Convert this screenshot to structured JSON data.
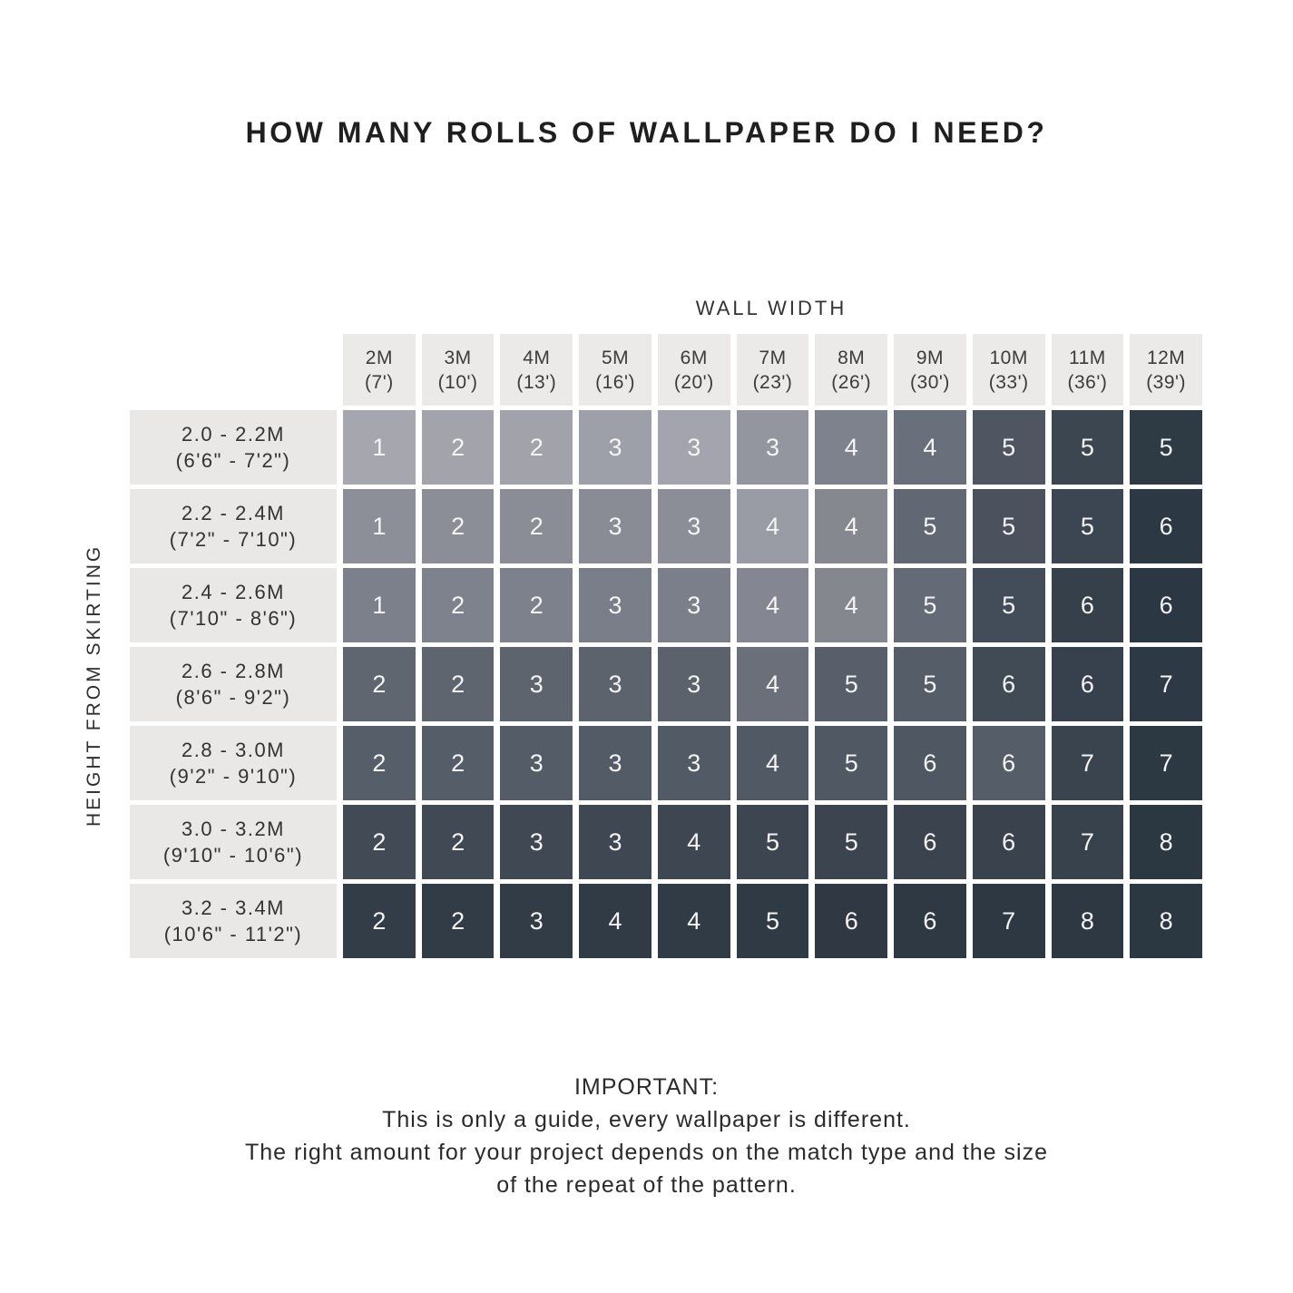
{
  "title": "HOW MANY ROLLS OF WALLPAPER DO I NEED?",
  "table": {
    "column_axis_label": "WALL WIDTH",
    "row_axis_label": "HEIGHT FROM SKIRTING",
    "columns": [
      {
        "meters": "2M",
        "feet": "(7')"
      },
      {
        "meters": "3M",
        "feet": "(10')"
      },
      {
        "meters": "4M",
        "feet": "(13')"
      },
      {
        "meters": "5M",
        "feet": "(16')"
      },
      {
        "meters": "6M",
        "feet": "(20')"
      },
      {
        "meters": "7M",
        "feet": "(23')"
      },
      {
        "meters": "8M",
        "feet": "(26')"
      },
      {
        "meters": "9M",
        "feet": "(30')"
      },
      {
        "meters": "10M",
        "feet": "(33')"
      },
      {
        "meters": "11M",
        "feet": "(36')"
      },
      {
        "meters": "12M",
        "feet": "(39')"
      }
    ],
    "rows": [
      {
        "meters": "2.0 - 2.2M",
        "feet": "(6'6\" - 7'2\")",
        "values": [
          1,
          2,
          2,
          3,
          3,
          3,
          4,
          4,
          5,
          5,
          5
        ],
        "colors": [
          "#a6a6af",
          "#a3a3ac",
          "#a2a2ab",
          "#9ea0a9",
          "#a3a4ad",
          "#94969f",
          "#7e828c",
          "#6a707b",
          "#4f5661",
          "#3b4651",
          "#2e3a44"
        ]
      },
      {
        "meters": "2.2 - 2.4M",
        "feet": "(7'2\" - 7'10\")",
        "values": [
          1,
          2,
          2,
          3,
          3,
          4,
          4,
          5,
          5,
          5,
          6
        ],
        "colors": [
          "#8c8f98",
          "#8b8e97",
          "#8a8d96",
          "#898c95",
          "#8b8e97",
          "#9a9ca5",
          "#85888f",
          "#616874",
          "#4b525e",
          "#3b4652",
          "#2c3843"
        ]
      },
      {
        "meters": "2.4 - 2.6M",
        "feet": "(7'10\" - 8'6\")",
        "values": [
          1,
          2,
          2,
          3,
          3,
          4,
          4,
          5,
          5,
          6,
          6
        ],
        "colors": [
          "#7c808b",
          "#7e828c",
          "#7d818b",
          "#7a7e88",
          "#7b7f89",
          "#848691",
          "#85878f",
          "#646b76",
          "#434d59",
          "#35404b",
          "#2b3742"
        ]
      },
      {
        "meters": "2.6 - 2.8M",
        "feet": "(8'6\" - 9'2\")",
        "values": [
          2,
          2,
          3,
          3,
          3,
          4,
          5,
          5,
          6,
          6,
          7
        ],
        "colors": [
          "#5f6670",
          "#5e656f",
          "#5d646e",
          "#5c636d",
          "#5b626c",
          "#6a6f7a",
          "#585f6b",
          "#555d69",
          "#404b56",
          "#36414d",
          "#2d3944"
        ]
      },
      {
        "meters": "2.8 - 3.0M",
        "feet": "(9'2\" - 9'10\")",
        "values": [
          2,
          2,
          3,
          3,
          3,
          4,
          5,
          6,
          6,
          7,
          7
        ],
        "colors": [
          "#565e69",
          "#555d68",
          "#545c67",
          "#535b66",
          "#525a65",
          "#515964",
          "#505863",
          "#4f5762",
          "#555d68",
          "#39444f",
          "#2c3842"
        ]
      },
      {
        "meters": "3.0 - 3.2M",
        "feet": "(9'10\" - 10'6\")",
        "values": [
          2,
          2,
          3,
          3,
          4,
          5,
          5,
          6,
          6,
          7,
          8
        ],
        "colors": [
          "#424b55",
          "#414a54",
          "#404953",
          "#3f4852",
          "#3e4751",
          "#3d4650",
          "#3c454f",
          "#3b444e",
          "#3a434d",
          "#37424d",
          "#2b3741"
        ]
      },
      {
        "meters": "3.2 - 3.4M",
        "feet": "(10'6\" - 11'2\")",
        "values": [
          2,
          2,
          3,
          4,
          4,
          5,
          6,
          6,
          7,
          8,
          8
        ],
        "colors": [
          "#333d47",
          "#323c46",
          "#323c46",
          "#313b45",
          "#313b45",
          "#303a44",
          "#303943",
          "#2f3943",
          "#2e3842",
          "#2d3842",
          "#2b3741"
        ]
      }
    ]
  },
  "footer": {
    "heading": "IMPORTANT:",
    "lines": [
      "This is only a guide, every wallpaper is different.",
      "The right amount for your project depends on the match type and the size",
      "of the repeat of the pattern."
    ]
  },
  "colors": {
    "page_bg": "#ffffff",
    "header_cell_bg": "#eceae9",
    "header_text": "#3c3c3c",
    "cell_number_text": "#f4f4f5",
    "title_text": "#1f1f1f",
    "cell_lightest": "#a6a6af",
    "cell_darkest": "#2b3741"
  },
  "chart_data": {
    "type": "heatmap",
    "title": "HOW MANY ROLLS OF WALLPAPER DO I NEED?",
    "xlabel": "WALL WIDTH",
    "ylabel": "HEIGHT FROM SKIRTING",
    "x_categories": [
      "2M (7')",
      "3M (10')",
      "4M (13')",
      "5M (16')",
      "6M (20')",
      "7M (23')",
      "8M (26')",
      "9M (30')",
      "10M (33')",
      "11M (36')",
      "12M (39')"
    ],
    "y_categories": [
      "2.0 - 2.2M (6'6\" - 7'2\")",
      "2.2 - 2.4M (7'2\" - 7'10\")",
      "2.4 - 2.6M (7'10\" - 8'6\")",
      "2.6 - 2.8M (8'6\" - 9'2\")",
      "2.8 - 3.0M (9'2\" - 9'10\")",
      "3.0 - 3.2M (9'10\" - 10'6\")",
      "3.2 - 3.4M (10'6\" - 11'2\")"
    ],
    "values": [
      [
        1,
        2,
        2,
        3,
        3,
        3,
        4,
        4,
        5,
        5,
        5
      ],
      [
        1,
        2,
        2,
        3,
        3,
        4,
        4,
        5,
        5,
        5,
        6
      ],
      [
        1,
        2,
        2,
        3,
        3,
        4,
        4,
        5,
        5,
        6,
        6
      ],
      [
        2,
        2,
        3,
        3,
        3,
        4,
        5,
        5,
        6,
        6,
        7
      ],
      [
        2,
        2,
        3,
        3,
        3,
        4,
        5,
        6,
        6,
        7,
        7
      ],
      [
        2,
        2,
        3,
        3,
        4,
        5,
        5,
        6,
        6,
        7,
        8
      ],
      [
        2,
        2,
        3,
        4,
        4,
        5,
        6,
        6,
        7,
        8,
        8
      ]
    ],
    "value_meaning": "number of wallpaper rolls needed",
    "value_range": [
      1,
      8
    ],
    "color_scale": "light gray (low) to dark slate (high), darkening toward bottom-right",
    "grid": false,
    "legend": "none"
  }
}
